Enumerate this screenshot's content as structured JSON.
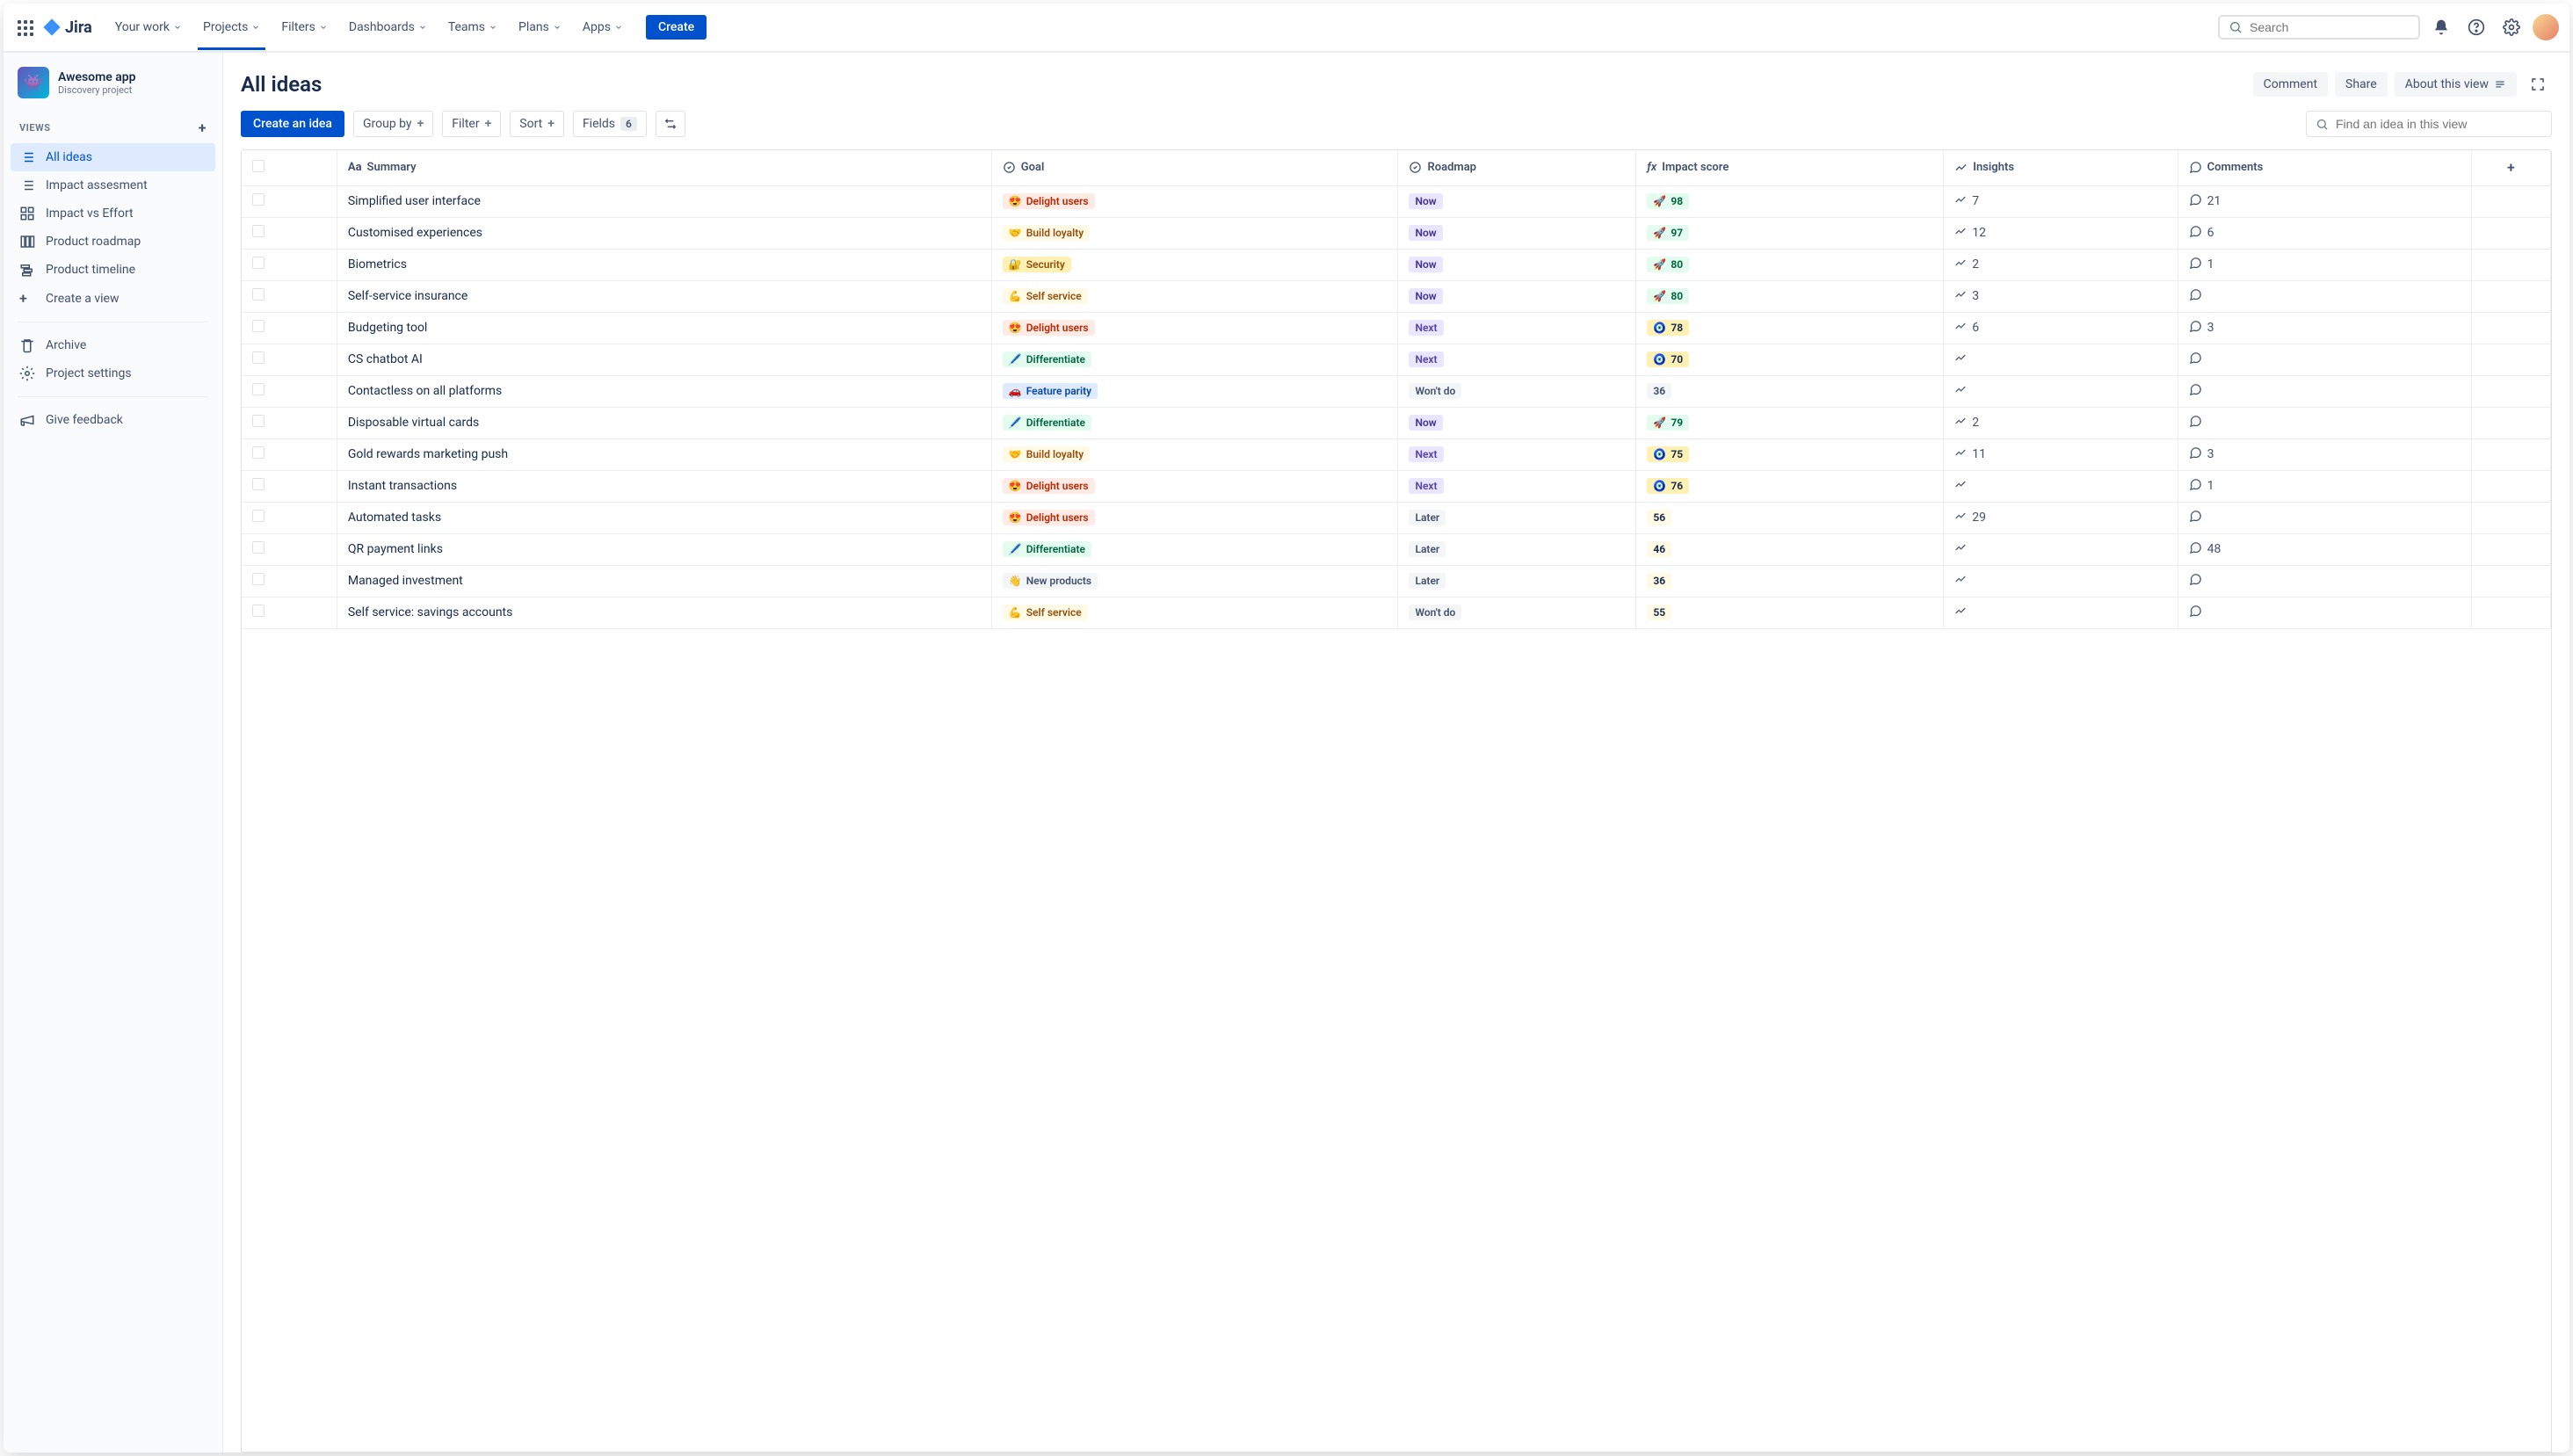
{
  "brand": "Jira",
  "nav": {
    "items": [
      "Your work",
      "Projects",
      "Filters",
      "Dashboards",
      "Teams",
      "Plans",
      "Apps"
    ],
    "active_index": 1,
    "create": "Create",
    "search_placeholder": "Search"
  },
  "project": {
    "name": "Awesome app",
    "type": "Discovery project",
    "emoji": "👾"
  },
  "sidebar": {
    "views_label": "VIEWS",
    "views": [
      {
        "label": "All ideas",
        "active": true,
        "icon": "list"
      },
      {
        "label": "Impact assesment",
        "active": false,
        "icon": "list"
      },
      {
        "label": "Impact vs Effort",
        "active": false,
        "icon": "grid"
      },
      {
        "label": "Product roadmap",
        "active": false,
        "icon": "columns"
      },
      {
        "label": "Product timeline",
        "active": false,
        "icon": "timeline"
      }
    ],
    "create_view": "Create a view",
    "archive": "Archive",
    "settings": "Project settings",
    "feedback": "Give feedback"
  },
  "page": {
    "title": "All ideas",
    "comment": "Comment",
    "share": "Share",
    "about": "About this view"
  },
  "toolbar": {
    "create_idea": "Create an idea",
    "group_by": "Group by",
    "filter": "Filter",
    "sort": "Sort",
    "fields": "Fields",
    "fields_count": "6",
    "find_placeholder": "Find an idea in this view"
  },
  "columns": {
    "summary": "Summary",
    "goal": "Goal",
    "roadmap": "Roadmap",
    "impact": "Impact score",
    "insights": "Insights",
    "comments": "Comments"
  },
  "goal_styles": {
    "Delight users": {
      "emoji": "😍",
      "bg": "#ffebe6",
      "fg": "#bf2600"
    },
    "Build loyalty": {
      "emoji": "🤝",
      "bg": "#fffae6",
      "fg": "#974f0c"
    },
    "Security": {
      "emoji": "🔐",
      "bg": "#fff0b3",
      "fg": "#974f0c"
    },
    "Self service": {
      "emoji": "💪",
      "bg": "#fffae6",
      "fg": "#974f0c"
    },
    "Differentiate": {
      "emoji": "🖊️",
      "bg": "#e3fcef",
      "fg": "#006644"
    },
    "Feature parity": {
      "emoji": "🚗",
      "bg": "#deebff",
      "fg": "#0747a6"
    },
    "New products": {
      "emoji": "👋",
      "bg": "#f4f5f7",
      "fg": "#42526e"
    }
  },
  "roadmap_styles": {
    "Now": {
      "bg": "#eae6ff",
      "fg": "#403294"
    },
    "Next": {
      "bg": "#eae6ff",
      "fg": "#5243aa"
    },
    "Later": {
      "bg": "#f4f5f7",
      "fg": "#42526e"
    },
    "Won't do": {
      "bg": "#f4f5f7",
      "fg": "#42526e"
    }
  },
  "rows": [
    {
      "summary": "Simplified user interface",
      "goal": "Delight users",
      "roadmap": "Now",
      "score": 98,
      "score_tier": "high",
      "insights": 7,
      "comments": 21
    },
    {
      "summary": "Customised experiences",
      "goal": "Build loyalty",
      "roadmap": "Now",
      "score": 97,
      "score_tier": "high",
      "insights": 12,
      "comments": 6
    },
    {
      "summary": "Biometrics",
      "goal": "Security",
      "roadmap": "Now",
      "score": 80,
      "score_tier": "high",
      "insights": 2,
      "comments": 1
    },
    {
      "summary": "Self-service insurance",
      "goal": "Self service",
      "roadmap": "Now",
      "score": 80,
      "score_tier": "high",
      "insights": 3,
      "comments": null
    },
    {
      "summary": "Budgeting tool",
      "goal": "Delight users",
      "roadmap": "Next",
      "score": 78,
      "score_tier": "mid",
      "insights": 6,
      "comments": 3
    },
    {
      "summary": "CS chatbot AI",
      "goal": "Differentiate",
      "roadmap": "Next",
      "score": 70,
      "score_tier": "mid",
      "insights": null,
      "comments": null
    },
    {
      "summary": "Contactless on all platforms",
      "goal": "Feature parity",
      "roadmap": "Won't do",
      "score": 36,
      "score_tier": "low",
      "insights": null,
      "comments": null
    },
    {
      "summary": "Disposable virtual cards",
      "goal": "Differentiate",
      "roadmap": "Now",
      "score": 79,
      "score_tier": "high",
      "insights": 2,
      "comments": null
    },
    {
      "summary": "Gold rewards marketing push",
      "goal": "Build loyalty",
      "roadmap": "Next",
      "score": 75,
      "score_tier": "mid",
      "insights": 11,
      "comments": 3
    },
    {
      "summary": "Instant transactions",
      "goal": "Delight users",
      "roadmap": "Next",
      "score": 76,
      "score_tier": "mid",
      "insights": null,
      "comments": 1
    },
    {
      "summary": "Automated tasks",
      "goal": "Delight users",
      "roadmap": "Later",
      "score": 56,
      "score_tier": "lowmid",
      "insights": 29,
      "comments": null
    },
    {
      "summary": "QR payment links",
      "goal": "Differentiate",
      "roadmap": "Later",
      "score": 46,
      "score_tier": "lowmid",
      "insights": null,
      "comments": 48
    },
    {
      "summary": "Managed investment",
      "goal": "New products",
      "roadmap": "Later",
      "score": 36,
      "score_tier": "lowmid",
      "insights": null,
      "comments": null
    },
    {
      "summary": "Self service: savings accounts",
      "goal": "Self service",
      "roadmap": "Won't do",
      "score": 55,
      "score_tier": "lowmid",
      "insights": null,
      "comments": null
    }
  ],
  "score_tier_styles": {
    "high": {
      "bg": "#e3fcef",
      "fg": "#006644",
      "emoji": "🚀"
    },
    "mid": {
      "bg": "#fff0b3",
      "fg": "#172b4d",
      "emoji": "🧿"
    },
    "lowmid": {
      "bg": "#fffae6",
      "fg": "#172b4d",
      "emoji": ""
    },
    "low": {
      "bg": "#f4f5f7",
      "fg": "#42526e",
      "emoji": ""
    }
  }
}
